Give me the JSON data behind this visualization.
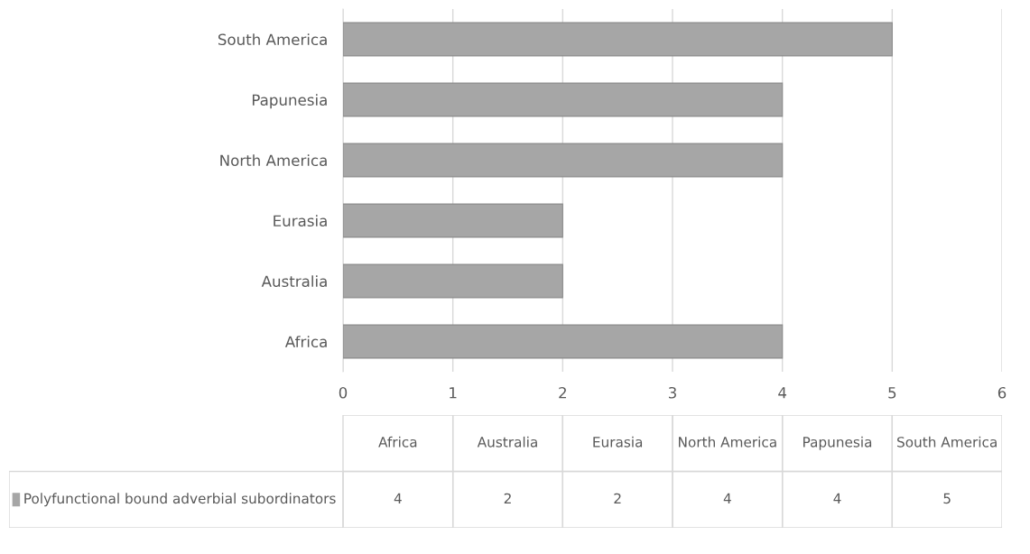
{
  "chart_data": [
    {
      "type": "bar",
      "orientation": "horizontal",
      "categories": [
        "South America",
        "Papunesia",
        "North America",
        "Eurasia",
        "Australia",
        "Africa"
      ],
      "series": [
        {
          "color": "#a6a6a6",
          "values": [
            5,
            4,
            4,
            2,
            2,
            4
          ]
        }
      ],
      "xlim": [
        0,
        6
      ],
      "xticks": [
        0,
        1,
        2,
        3,
        4,
        5,
        6
      ],
      "grid": "x"
    },
    {
      "type": "other",
      "categories": [
        "Africa",
        "Australia",
        "Eurasia",
        "North America",
        "Papunesia",
        "South America"
      ],
      "series": [
        {
          "name": "Polyfunctional bound adverbial subordinators",
          "color": "#a6a6a6",
          "values": [
            4,
            2,
            2,
            4,
            4,
            5
          ]
        }
      ],
      "legend": "left",
      "data_labels": true
    }
  ]
}
